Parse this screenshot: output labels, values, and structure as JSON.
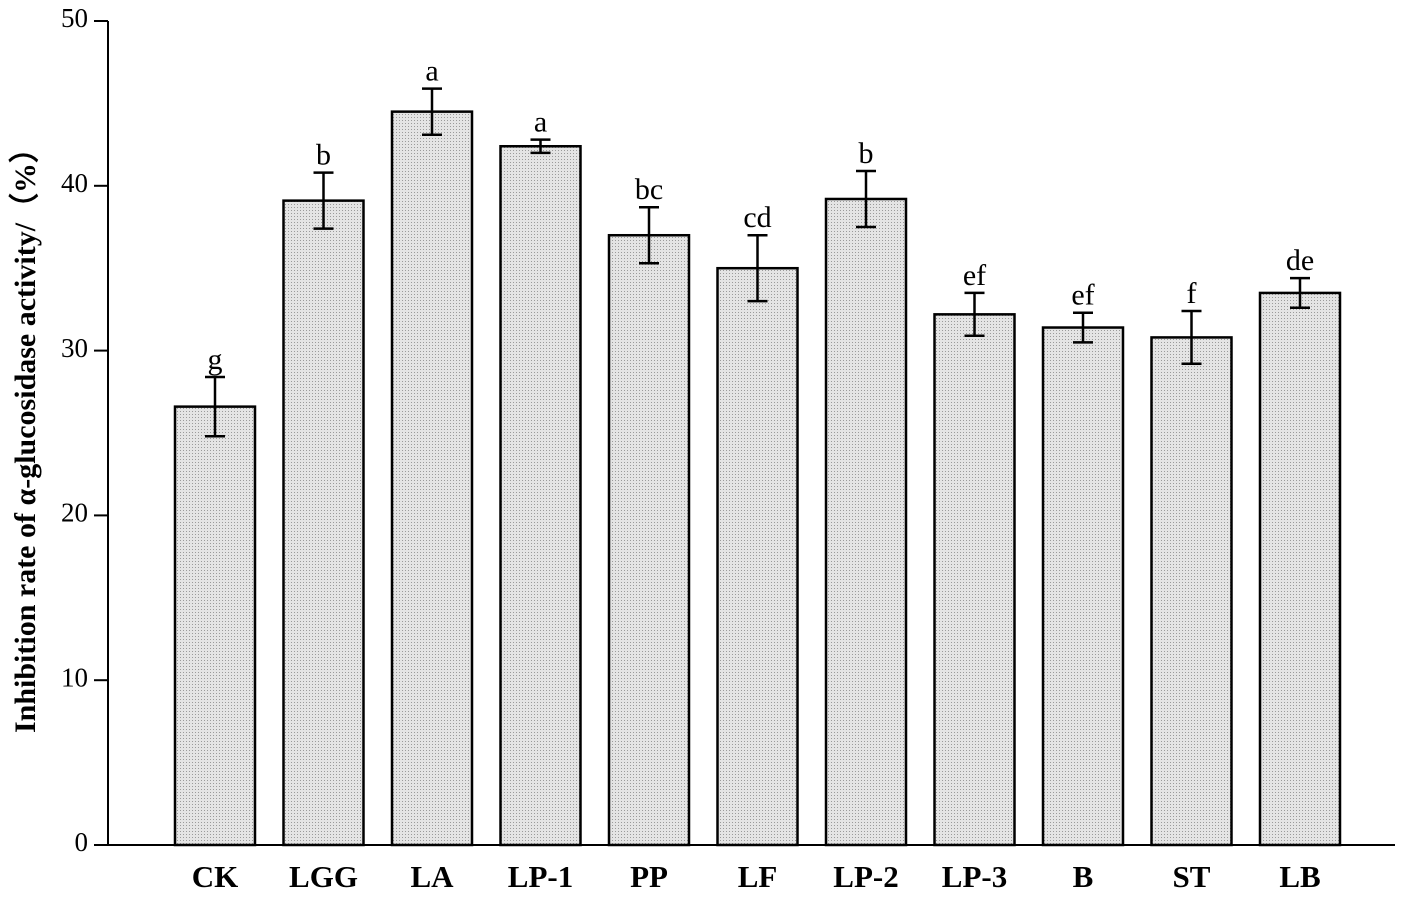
{
  "chart_data": {
    "type": "bar",
    "y_label": "Inhibition rate of α-glucosidase activity/（%）",
    "categories": [
      "CK",
      "LGG",
      "LA",
      "LP-1",
      "PP",
      "LF",
      "LP-2",
      "LP-3",
      "B",
      "ST",
      "LB"
    ],
    "values": [
      26.6,
      39.1,
      44.5,
      42.4,
      37.0,
      35.0,
      39.2,
      32.2,
      31.4,
      30.8,
      33.5
    ],
    "errors": [
      1.8,
      1.7,
      1.4,
      0.4,
      1.7,
      2.0,
      1.7,
      1.3,
      0.9,
      1.6,
      0.9
    ],
    "annotations": [
      "g",
      "b",
      "a",
      "a",
      "bc",
      "cd",
      "b",
      "ef",
      "ef",
      "f",
      "de"
    ],
    "color": "#d6d6d6",
    "ylim": [
      0,
      50
    ],
    "yticks": [
      0,
      10,
      20,
      30,
      40,
      50
    ]
  }
}
